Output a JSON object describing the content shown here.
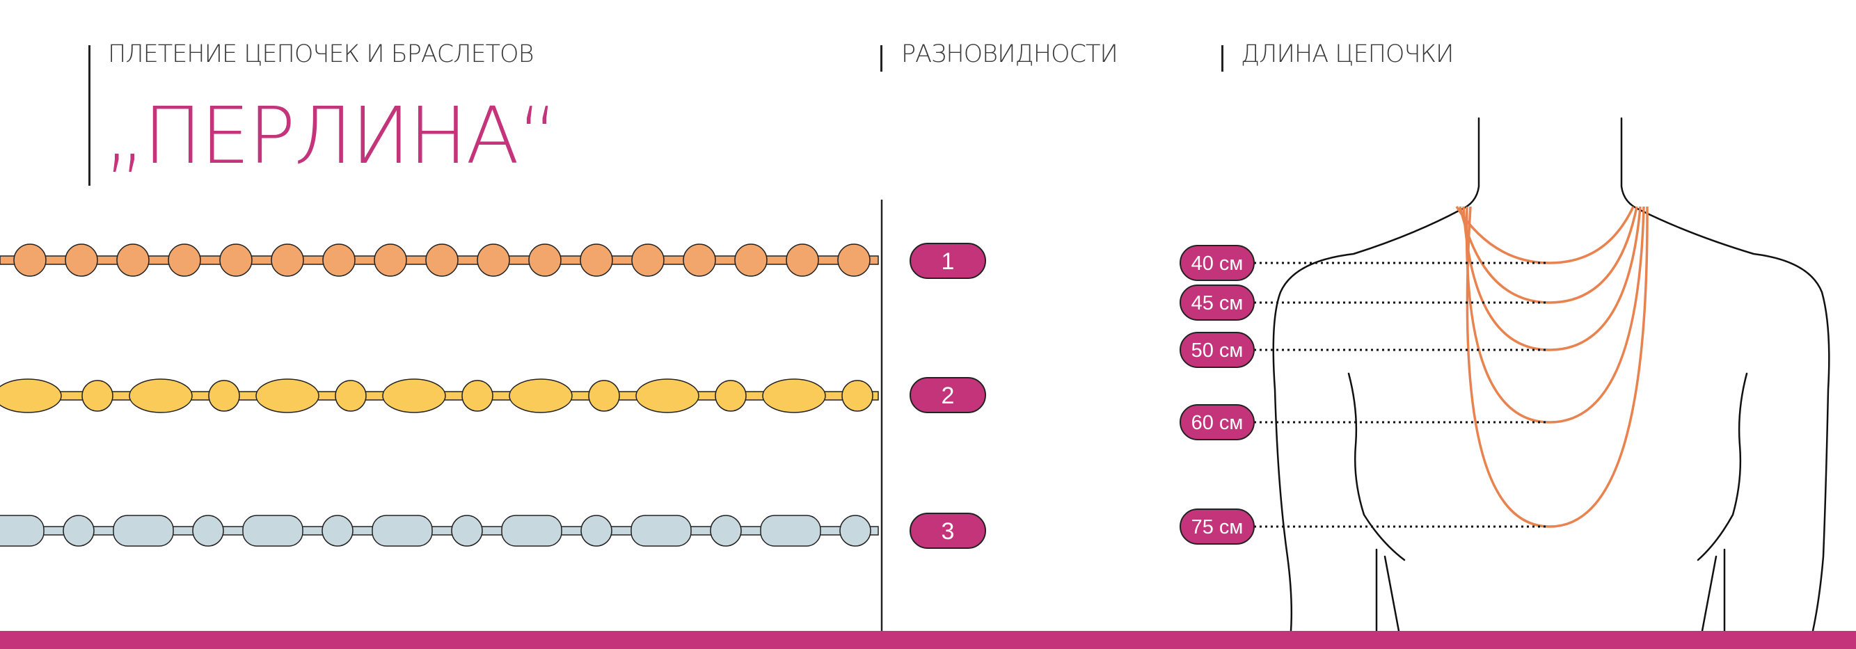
{
  "header": {
    "weave_title": "ПЛЕТЕНИЕ ЦЕПОЧЕК И БРАСЛЕТОВ",
    "chain_name": "„ПЕРЛИНА“",
    "varieties_title": "РАЗНОВИДНОСТИ",
    "length_title": "ДЛИНА ЦЕПОЧКИ"
  },
  "varieties": [
    {
      "label": "1",
      "fill": "#f2a66b",
      "pattern": "round beads"
    },
    {
      "label": "2",
      "fill": "#fbcb5a",
      "pattern": "alternating oval and round beads"
    },
    {
      "label": "3",
      "fill": "#c8d8df",
      "pattern": "alternating capsule and round beads"
    }
  ],
  "lengths": [
    {
      "label": "40 см"
    },
    {
      "label": "45 см"
    },
    {
      "label": "50 см"
    },
    {
      "label": "60 см"
    },
    {
      "label": "75 см"
    }
  ],
  "colors": {
    "accent": "#c4347a",
    "chain_line": "#e8834f",
    "outline": "#222222"
  }
}
